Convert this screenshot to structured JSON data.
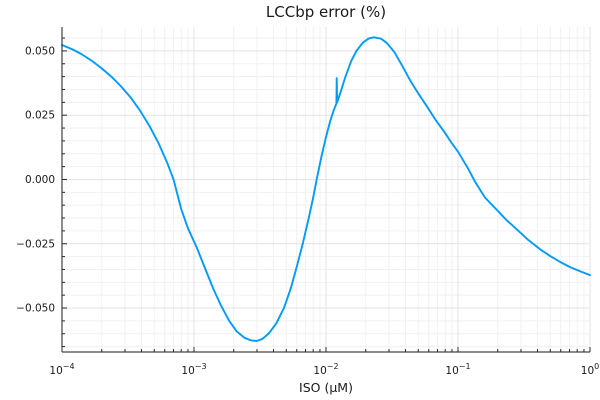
{
  "chart_data": {
    "type": "line",
    "title": "LCCbp error (%)",
    "xlabel": "ISO (μM)",
    "ylabel": "",
    "x_scale": "log10",
    "x_range": [
      0.0001,
      1
    ],
    "y_display_range": [
      -0.0671,
      0.0593
    ],
    "x_tick_base": "10",
    "x_tick_exponents": [
      -4,
      -3,
      -2,
      -1,
      0
    ],
    "y_ticks": [
      0.05,
      0.025,
      0,
      -0.025,
      -0.05
    ],
    "y_tick_labels": [
      "0.050",
      "0.025",
      "0.000",
      "−0.025",
      "−0.050"
    ],
    "y_minor_step": 0.005,
    "grid": true,
    "minor_grid": true,
    "legend": "none",
    "line_color": "#009af9",
    "series": [
      {
        "name": "LCCbp error",
        "points": [
          [
            0.0001,
            0.0523
          ],
          [
            0.00012,
            0.0506
          ],
          [
            0.00014,
            0.0488
          ],
          [
            0.00017,
            0.046
          ],
          [
            0.0002,
            0.0432
          ],
          [
            0.00024,
            0.0397
          ],
          [
            0.00028,
            0.0362
          ],
          [
            0.00033,
            0.032
          ],
          [
            0.00039,
            0.0268
          ],
          [
            0.00046,
            0.0208
          ],
          [
            0.00054,
            0.014
          ],
          [
            0.00063,
            0.0062
          ],
          [
            0.0007,
            0.0
          ],
          [
            0.0008,
            -0.0115
          ],
          [
            0.0009,
            -0.019
          ],
          [
            0.00105,
            -0.0265
          ],
          [
            0.0012,
            -0.034
          ],
          [
            0.0014,
            -0.0425
          ],
          [
            0.0016,
            -0.049
          ],
          [
            0.00185,
            -0.055
          ],
          [
            0.0021,
            -0.059
          ],
          [
            0.0024,
            -0.0615
          ],
          [
            0.0027,
            -0.0626
          ],
          [
            0.003,
            -0.0628
          ],
          [
            0.0033,
            -0.062
          ],
          [
            0.0037,
            -0.0598
          ],
          [
            0.0042,
            -0.056
          ],
          [
            0.0048,
            -0.05
          ],
          [
            0.0054,
            -0.0425
          ],
          [
            0.006,
            -0.034
          ],
          [
            0.0067,
            -0.0245
          ],
          [
            0.0074,
            -0.015
          ],
          [
            0.008,
            -0.007
          ],
          [
            0.0085,
            0.0
          ],
          [
            0.0092,
            0.0085
          ],
          [
            0.01,
            0.0165
          ],
          [
            0.0108,
            0.023
          ],
          [
            0.0115,
            0.0272
          ],
          [
            0.012,
            0.0296
          ],
          [
            0.01205,
            0.0394
          ],
          [
            0.01215,
            0.03
          ],
          [
            0.013,
            0.0345
          ],
          [
            0.014,
            0.0398
          ],
          [
            0.0155,
            0.046
          ],
          [
            0.017,
            0.05
          ],
          [
            0.019,
            0.0532
          ],
          [
            0.021,
            0.0548
          ],
          [
            0.023,
            0.0553
          ],
          [
            0.026,
            0.0548
          ],
          [
            0.029,
            0.053
          ],
          [
            0.033,
            0.0495
          ],
          [
            0.038,
            0.044
          ],
          [
            0.044,
            0.038
          ],
          [
            0.05,
            0.0335
          ],
          [
            0.058,
            0.0285
          ],
          [
            0.068,
            0.023
          ],
          [
            0.08,
            0.018
          ],
          [
            0.09,
            0.014
          ],
          [
            0.1,
            0.0108
          ],
          [
            0.12,
            0.004
          ],
          [
            0.135,
            -0.001
          ],
          [
            0.16,
            -0.007
          ],
          [
            0.19,
            -0.011
          ],
          [
            0.23,
            -0.0155
          ],
          [
            0.28,
            -0.0195
          ],
          [
            0.34,
            -0.0235
          ],
          [
            0.42,
            -0.0272
          ],
          [
            0.5,
            -0.0298
          ],
          [
            0.6,
            -0.0322
          ],
          [
            0.7,
            -0.034
          ],
          [
            0.85,
            -0.0358
          ],
          [
            1.0,
            -0.0372
          ]
        ]
      }
    ]
  }
}
